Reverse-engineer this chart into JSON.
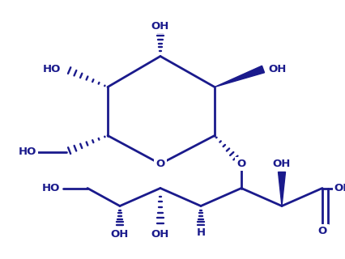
{
  "line_color": "#1a1a8c",
  "bg_color": "#ffffff",
  "line_width": 2.0,
  "font_size": 9.5,
  "font_weight": "bold",
  "dpi": 100,
  "figsize": [
    4.26,
    3.2
  ],
  "xlim": [
    0,
    426
  ],
  "ylim": [
    0,
    285
  ]
}
